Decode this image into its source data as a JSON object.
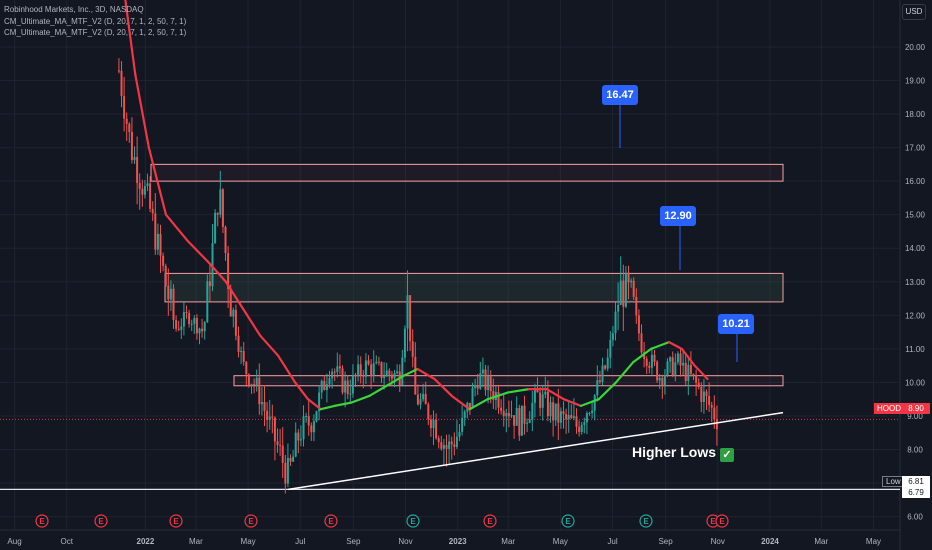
{
  "legend": {
    "symbol": "Robinhood Markets, Inc., 3D, NASDAQ",
    "ind1": "CM_Ultimate_MA_MTF_V2 (D, 20, 7, 1, 2, 50, 7, 1)",
    "ind2": "CM_Ultimate_MA_MTF_V2 (D, 20, 7, 1, 2, 50, 7, 1)"
  },
  "currency": "USD",
  "callouts": {
    "a": "16.47",
    "b": "12.90",
    "c": "10.21"
  },
  "annotation": {
    "text": "Higher Lows",
    "emoji": "✓"
  },
  "price_tags": {
    "symbol": "HOOD",
    "last": "8.90",
    "low_label": "Low",
    "low": "6.81",
    "low2": "6.79"
  },
  "colors": {
    "up": "#26a69a",
    "down": "#ef5350",
    "ma_red": "#f23645",
    "ma_green": "#3bd43b",
    "zone": "#f7a1a7",
    "callout": "#2962ff"
  },
  "chart_data": {
    "type": "candlestick",
    "title": "Robinhood Markets, Inc., 3D, NASDAQ",
    "x_tick_labels": [
      "Aug",
      "Oct",
      "2022",
      "Mar",
      "May",
      "Jul",
      "Sep",
      "Nov",
      "2023",
      "Mar",
      "May",
      "Jul",
      "Sep",
      "Nov",
      "2024",
      "Mar",
      "May"
    ],
    "y_tick_labels": [
      "6.00",
      "7.00",
      "8.00",
      "9.00",
      "10.00",
      "11.00",
      "12.00",
      "13.00",
      "14.00",
      "15.00",
      "16.00",
      "17.00",
      "18.00",
      "19.00",
      "20.00"
    ],
    "ylim": [
      5.6,
      21.4
    ],
    "grid": true,
    "resistance_zones": [
      [
        16.0,
        16.5
      ],
      [
        12.4,
        13.25
      ],
      [
        9.9,
        10.2
      ]
    ],
    "support_levels": [
      6.81
    ],
    "trendline": [
      [
        "2022-06-17",
        6.81
      ],
      [
        "2024-01-01",
        9.1
      ]
    ],
    "targets": [
      16.47,
      12.9,
      10.21
    ],
    "last_price": 8.9,
    "anchors": [
      [
        "2021-12-01",
        19.3
      ],
      [
        "2021-12-15",
        17.0
      ],
      [
        "2022-01-05",
        15.3
      ],
      [
        "2022-01-20",
        13.5
      ],
      [
        "2022-02-05",
        11.6
      ],
      [
        "2022-02-20",
        12.0
      ],
      [
        "2022-03-10",
        11.5
      ],
      [
        "2022-03-28",
        15.8
      ],
      [
        "2022-04-10",
        12.5
      ],
      [
        "2022-04-25",
        10.5
      ],
      [
        "2022-05-12",
        9.8
      ],
      [
        "2022-05-28",
        8.6
      ],
      [
        "2022-06-17",
        7.2
      ],
      [
        "2022-06-30",
        8.5
      ],
      [
        "2022-07-15",
        8.9
      ],
      [
        "2022-08-05",
        10.5
      ],
      [
        "2022-08-25",
        9.8
      ],
      [
        "2022-09-15",
        10.5
      ],
      [
        "2022-10-05",
        10.3
      ],
      [
        "2022-10-25",
        10.2
      ],
      [
        "2022-11-03",
        12.5
      ],
      [
        "2022-11-12",
        9.6
      ],
      [
        "2022-12-01",
        9.0
      ],
      [
        "2022-12-20",
        8.0
      ],
      [
        "2023-01-05",
        8.6
      ],
      [
        "2023-01-25",
        10.2
      ],
      [
        "2023-02-20",
        9.5
      ],
      [
        "2023-03-15",
        8.8
      ],
      [
        "2023-04-05",
        9.6
      ],
      [
        "2023-04-25",
        9.0
      ],
      [
        "2023-05-20",
        8.7
      ],
      [
        "2023-06-10",
        9.6
      ],
      [
        "2023-06-25",
        10.6
      ],
      [
        "2023-07-10",
        12.8
      ],
      [
        "2023-07-22",
        12.6
      ],
      [
        "2023-08-05",
        11.0
      ],
      [
        "2023-08-25",
        10.2
      ],
      [
        "2023-09-15",
        10.6
      ],
      [
        "2023-10-05",
        10.0
      ],
      [
        "2023-10-20",
        9.4
      ],
      [
        "2023-11-01",
        8.9
      ]
    ],
    "series": [
      {
        "name": "CM_Ultimate_MA_MTF_V2",
        "points": [
          [
            "2021-12-08",
            21.5
          ],
          [
            "2021-12-20",
            19.2
          ],
          [
            "2022-01-05",
            17.0
          ],
          [
            "2022-01-25",
            15.0
          ],
          [
            "2022-02-20",
            14.2
          ],
          [
            "2022-03-15",
            13.6
          ],
          [
            "2022-04-05",
            13.0
          ],
          [
            "2022-04-25",
            12.2
          ],
          [
            "2022-05-15",
            11.4
          ],
          [
            "2022-06-05",
            10.8
          ],
          [
            "2022-06-25",
            10.0
          ],
          [
            "2022-07-10",
            9.5
          ],
          [
            "2022-07-25",
            9.2
          ],
          [
            "2022-08-10",
            9.3
          ],
          [
            "2022-08-30",
            9.4
          ],
          [
            "2022-09-20",
            9.6
          ],
          [
            "2022-10-10",
            9.9
          ],
          [
            "2022-10-30",
            10.2
          ],
          [
            "2022-11-15",
            10.4
          ],
          [
            "2022-12-05",
            10.1
          ],
          [
            "2022-12-25",
            9.6
          ],
          [
            "2023-01-15",
            9.2
          ],
          [
            "2023-02-05",
            9.5
          ],
          [
            "2023-03-01",
            9.7
          ],
          [
            "2023-03-25",
            9.8
          ],
          [
            "2023-04-15",
            9.8
          ],
          [
            "2023-05-05",
            9.5
          ],
          [
            "2023-05-25",
            9.3
          ],
          [
            "2023-06-15",
            9.5
          ],
          [
            "2023-07-05",
            10.0
          ],
          [
            "2023-07-25",
            10.6
          ],
          [
            "2023-08-15",
            11.0
          ],
          [
            "2023-09-05",
            11.2
          ],
          [
            "2023-09-20",
            11.0
          ],
          [
            "2023-10-05",
            10.5
          ],
          [
            "2023-10-20",
            10.1
          ]
        ]
      }
    ]
  }
}
